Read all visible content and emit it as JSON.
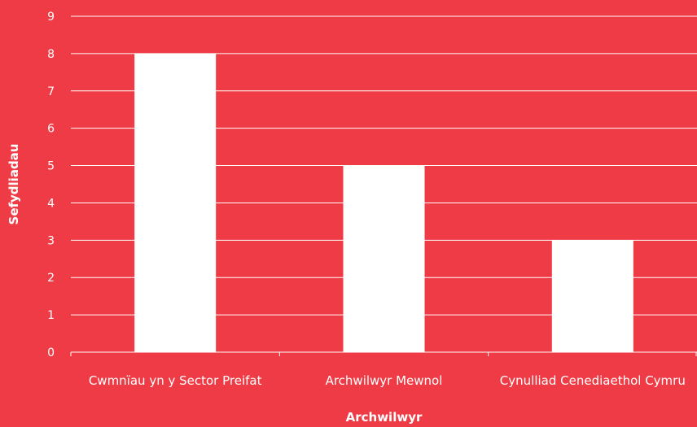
{
  "colors": {
    "background": "#ef3b45",
    "bar": "#ffffff",
    "grid": "#ffffff",
    "text": "#ffffff"
  },
  "chart_data": {
    "type": "bar",
    "categories": [
      "Cwmnïau yn y Sector Preifat",
      "Archwilwyr Mewnol",
      "Cynulliad Cenediaethol Cymru"
    ],
    "values": [
      8,
      5,
      3
    ],
    "xlabel": "Archwilwyr",
    "ylabel": "Sefydliadau",
    "ylim": [
      0,
      9
    ],
    "yticks": [
      "0",
      "1",
      "2",
      "3",
      "4",
      "5",
      "6",
      "7",
      "8",
      "9"
    ],
    "grid": true,
    "legend": "none"
  }
}
